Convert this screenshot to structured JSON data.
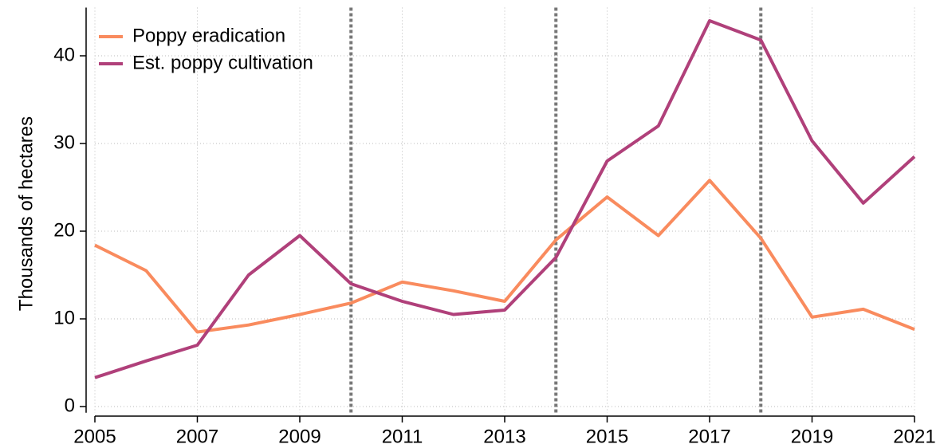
{
  "chart_data": {
    "type": "line",
    "y_label": "Thousands of hectares",
    "x": [
      2005,
      2006,
      2007,
      2008,
      2009,
      2010,
      2011,
      2012,
      2013,
      2014,
      2015,
      2016,
      2017,
      2018,
      2019,
      2020,
      2021
    ],
    "series": [
      {
        "name": "Poppy eradication",
        "color": "#f98b5e",
        "values": [
          18.4,
          15.5,
          8.5,
          9.3,
          10.5,
          11.8,
          14.2,
          13.2,
          12.0,
          19.0,
          23.9,
          19.5,
          25.8,
          19.2,
          10.2,
          11.1,
          8.8
        ]
      },
      {
        "name": "Est. poppy cultivation",
        "color": "#b0407a",
        "values": [
          3.3,
          5.2,
          7.0,
          15.0,
          19.5,
          14.0,
          12.0,
          10.5,
          11.0,
          17.0,
          28.0,
          32.0,
          44.0,
          41.8,
          30.3,
          23.2,
          28.5
        ]
      }
    ],
    "xlim": [
      2005,
      2021
    ],
    "xticks": [
      2005,
      2007,
      2009,
      2011,
      2013,
      2015,
      2017,
      2019,
      2021
    ],
    "ylim": [
      -0.7,
      45.5
    ],
    "yticks": [
      0,
      10,
      20,
      30,
      40
    ],
    "grid": true,
    "vlines": [
      2010,
      2014,
      2018
    ],
    "legend": "top-left"
  }
}
